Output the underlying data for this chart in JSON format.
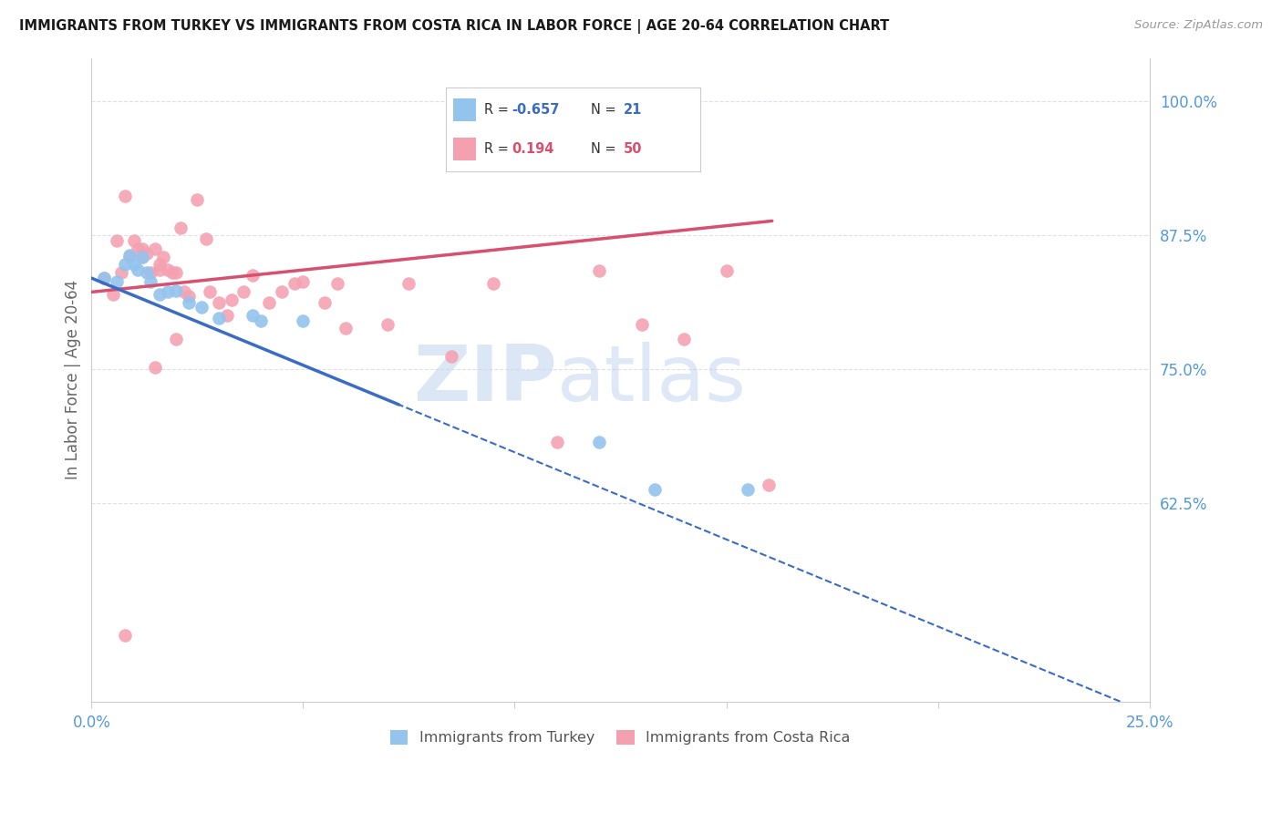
{
  "title": "IMMIGRANTS FROM TURKEY VS IMMIGRANTS FROM COSTA RICA IN LABOR FORCE | AGE 20-64 CORRELATION CHART",
  "source": "Source: ZipAtlas.com",
  "ylabel": "In Labor Force | Age 20-64",
  "xlim": [
    0.0,
    0.25
  ],
  "ylim": [
    0.44,
    1.04
  ],
  "xtick_positions": [
    0.0,
    0.05,
    0.1,
    0.15,
    0.2,
    0.25
  ],
  "xtick_labels": [
    "0.0%",
    "",
    "",
    "",
    "",
    "25.0%"
  ],
  "ytick_right_positions": [
    1.0,
    0.875,
    0.75,
    0.625
  ],
  "ytick_right_labels": [
    "100.0%",
    "87.5%",
    "75.0%",
    "62.5%"
  ],
  "turkey_color": "#93C4EE",
  "costa_rica_color": "#F4A0B0",
  "turkey_line_color": "#3B6CC5",
  "costa_rica_line_color": "#D85070",
  "axis_tick_color": "#5599DD",
  "grid_color": "#E0E0E8",
  "turkey_R": -0.657,
  "turkey_N": 21,
  "costa_rica_R": 0.194,
  "costa_rica_N": 50,
  "watermark_zip": "ZIP",
  "watermark_atlas": "atlas",
  "background_color": "#FFFFFF",
  "turkey_x": [
    0.003,
    0.006,
    0.008,
    0.009,
    0.01,
    0.011,
    0.012,
    0.013,
    0.014,
    0.016,
    0.018,
    0.02,
    0.023,
    0.026,
    0.03,
    0.038,
    0.04,
    0.05,
    0.12,
    0.133,
    0.155
  ],
  "turkey_y": [
    0.835,
    0.832,
    0.848,
    0.856,
    0.848,
    0.843,
    0.855,
    0.84,
    0.832,
    0.82,
    0.822,
    0.823,
    0.812,
    0.808,
    0.798,
    0.8,
    0.795,
    0.795,
    0.682,
    0.638,
    0.638
  ],
  "costa_rica_x": [
    0.003,
    0.005,
    0.006,
    0.007,
    0.008,
    0.009,
    0.01,
    0.011,
    0.012,
    0.012,
    0.013,
    0.014,
    0.015,
    0.016,
    0.016,
    0.017,
    0.018,
    0.019,
    0.02,
    0.021,
    0.022,
    0.023,
    0.025,
    0.027,
    0.028,
    0.03,
    0.032,
    0.033,
    0.036,
    0.038,
    0.042,
    0.045,
    0.048,
    0.05,
    0.055,
    0.058,
    0.06,
    0.07,
    0.075,
    0.085,
    0.095,
    0.11,
    0.12,
    0.13,
    0.14,
    0.15,
    0.16,
    0.02,
    0.015,
    0.008
  ],
  "costa_rica_y": [
    0.835,
    0.82,
    0.87,
    0.84,
    0.912,
    0.855,
    0.87,
    0.862,
    0.862,
    0.855,
    0.858,
    0.84,
    0.862,
    0.843,
    0.848,
    0.855,
    0.843,
    0.84,
    0.84,
    0.882,
    0.822,
    0.818,
    0.908,
    0.872,
    0.822,
    0.812,
    0.8,
    0.815,
    0.822,
    0.838,
    0.812,
    0.822,
    0.83,
    0.832,
    0.812,
    0.83,
    0.788,
    0.792,
    0.83,
    0.762,
    0.83,
    0.682,
    0.842,
    0.792,
    0.778,
    0.842,
    0.642,
    0.778,
    0.752,
    0.502
  ],
  "turkey_line_x0": 0.0,
  "turkey_line_y0": 0.835,
  "turkey_line_x1": 0.072,
  "turkey_line_y1": 0.718,
  "costa_rica_line_x0": 0.0,
  "costa_rica_line_y0": 0.822,
  "costa_rica_line_x1": 0.16,
  "costa_rica_line_y1": 0.888
}
